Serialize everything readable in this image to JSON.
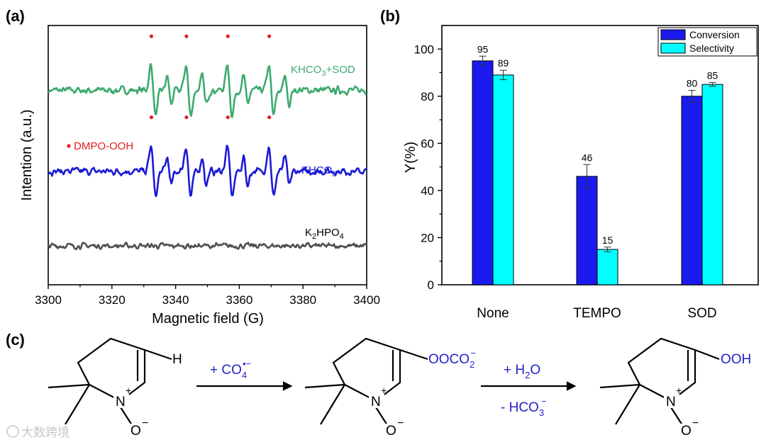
{
  "panel_labels": {
    "a": "(a)",
    "b": "(b)",
    "c": "(c)"
  },
  "colors": {
    "green": "#3daa6e",
    "blue": "#1a1ad6",
    "gray": "#505050",
    "red": "#e02020",
    "conversion": "#1a1aee",
    "selectivity": "#00ffff",
    "scheme_text": "#2222cc"
  },
  "chart_data": [
    {
      "type": "line",
      "panel": "(a)",
      "title": "",
      "xlabel": "Magnetic field (G)",
      "ylabel": "Intention (a.u.)",
      "xlim": [
        3300,
        3400
      ],
      "xticks": [
        3300,
        3320,
        3340,
        3360,
        3380,
        3400
      ],
      "series": [
        {
          "name": "KHCO3+SOD",
          "label_main": "KHCO",
          "label_sub": "3",
          "label_tail": "+SOD",
          "color": "#3daa6e",
          "baseline": 3.0,
          "amp": 1.0
        },
        {
          "name": "KHCO3",
          "label_main": "KHCO",
          "label_sub": "3",
          "label_tail": "",
          "color": "#1a1ad6",
          "baseline": 1.75,
          "amp": 1.0
        },
        {
          "name": "K2HPO4",
          "label_main": "K",
          "label_sub": "2",
          "label_tail": "HPO",
          "label_sub2": "4",
          "color": "#505050",
          "baseline": 0.6,
          "amp": 0.0
        }
      ],
      "peaks": [
        3333,
        3344,
        3357,
        3370
      ],
      "annotation": "DMPO-OOH"
    },
    {
      "type": "bar",
      "panel": "(b)",
      "title": "",
      "xlabel": "",
      "ylabel": "Y(%)",
      "ylim": [
        0,
        110
      ],
      "yticks": [
        0,
        20,
        40,
        60,
        80,
        100
      ],
      "categories": [
        "None",
        "TEMPO",
        "SOD"
      ],
      "series": [
        {
          "name": "Conversion",
          "values": [
            95,
            46,
            80
          ],
          "errors": [
            2,
            5,
            2.5
          ],
          "color": "#1a1aee"
        },
        {
          "name": "Selectivity",
          "values": [
            89,
            15,
            85
          ],
          "errors": [
            2,
            1,
            0.8
          ],
          "color": "#00ffff"
        }
      ],
      "legend": [
        "Conversion",
        "Selectivity"
      ],
      "legend_position": "top-right"
    }
  ],
  "scheme": {
    "reagent1_main": "+ CO",
    "reagent1_sub": "4",
    "reagent1_sup": "•−",
    "reagent2": "+ H",
    "reagent2_sub": "2",
    "reagent2_tail": "O",
    "byproduct_main": "- HCO",
    "byproduct_sub": "3",
    "byproduct_sup": "−",
    "substituent1": "H",
    "substituent2_main": "OOCO",
    "substituent2_sub": "2",
    "substituent2_sup": "−",
    "substituent3": "OOH",
    "atom_n": "N",
    "atom_n_charge": "+",
    "atom_o": "O",
    "atom_o_charge": "−"
  },
  "watermark": "大数跨境"
}
